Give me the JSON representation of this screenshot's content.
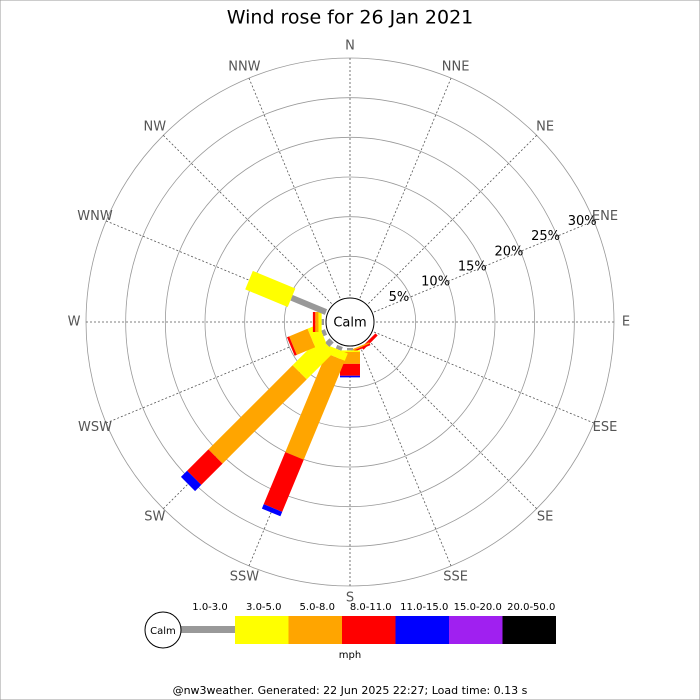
{
  "chart_data": {
    "type": "windrose",
    "title": "Wind rose for 26 Jan 2021",
    "directions": [
      "N",
      "NNE",
      "NE",
      "ENE",
      "E",
      "ESE",
      "SE",
      "SSE",
      "S",
      "SSW",
      "SW",
      "WSW",
      "W",
      "WNW",
      "NW",
      "NNW"
    ],
    "calm_label": "Calm",
    "rlim": [
      0,
      30
    ],
    "rticks": [
      {
        "value": 5,
        "label": "5%"
      },
      {
        "value": 10,
        "label": "10%"
      },
      {
        "value": 15,
        "label": "15%"
      },
      {
        "value": 20,
        "label": "20%"
      },
      {
        "value": 25,
        "label": "25%"
      },
      {
        "value": 30,
        "label": "30%"
      }
    ],
    "series": [
      {
        "name": "1.0-3.0",
        "color": "#999999",
        "values": [
          0,
          0,
          0,
          0,
          0,
          0,
          0,
          0,
          0.3,
          0.5,
          0.8,
          0.5,
          0.3,
          4.7,
          0,
          0
        ]
      },
      {
        "name": "3.0-5.0",
        "color": "#ffff00",
        "values": [
          0,
          0,
          0,
          0,
          0,
          0,
          0,
          0,
          0.2,
          1.0,
          4.9,
          1.5,
          0.4,
          5.8,
          0,
          0
        ]
      },
      {
        "name": "5.0-8.0",
        "color": "#ffa500",
        "values": [
          0,
          0,
          0,
          0,
          0,
          0,
          0,
          0.2,
          1.5,
          13.5,
          15.0,
          2.5,
          0.4,
          0,
          0,
          0
        ]
      },
      {
        "name": "8.0-11.0",
        "color": "#ff0000",
        "values": [
          0,
          0,
          0,
          0,
          0,
          0,
          0.4,
          0.2,
          1.5,
          7.1,
          3.8,
          0.3,
          0.3,
          0,
          0,
          0
        ]
      },
      {
        "name": "11.0-15.0",
        "color": "#0000ff",
        "values": [
          0,
          0,
          0,
          0,
          0,
          0,
          0,
          0,
          0.2,
          0.6,
          1.1,
          0,
          0,
          0,
          0,
          0
        ]
      },
      {
        "name": "15.0-20.0",
        "color": "#a020f0",
        "values": [
          0,
          0,
          0,
          0,
          0,
          0,
          0,
          0,
          0,
          0,
          0,
          0,
          0,
          0,
          0,
          0
        ]
      },
      {
        "name": "20.0-50.0",
        "color": "#000000",
        "values": [
          0,
          0,
          0,
          0,
          0,
          0,
          0,
          0,
          0,
          0,
          0,
          0,
          0,
          0,
          0,
          0
        ]
      }
    ],
    "unit": "mph",
    "footer": "@nw3weather. Generated: 22 Jun 2025 22:27; Load time: 0.13 s"
  }
}
